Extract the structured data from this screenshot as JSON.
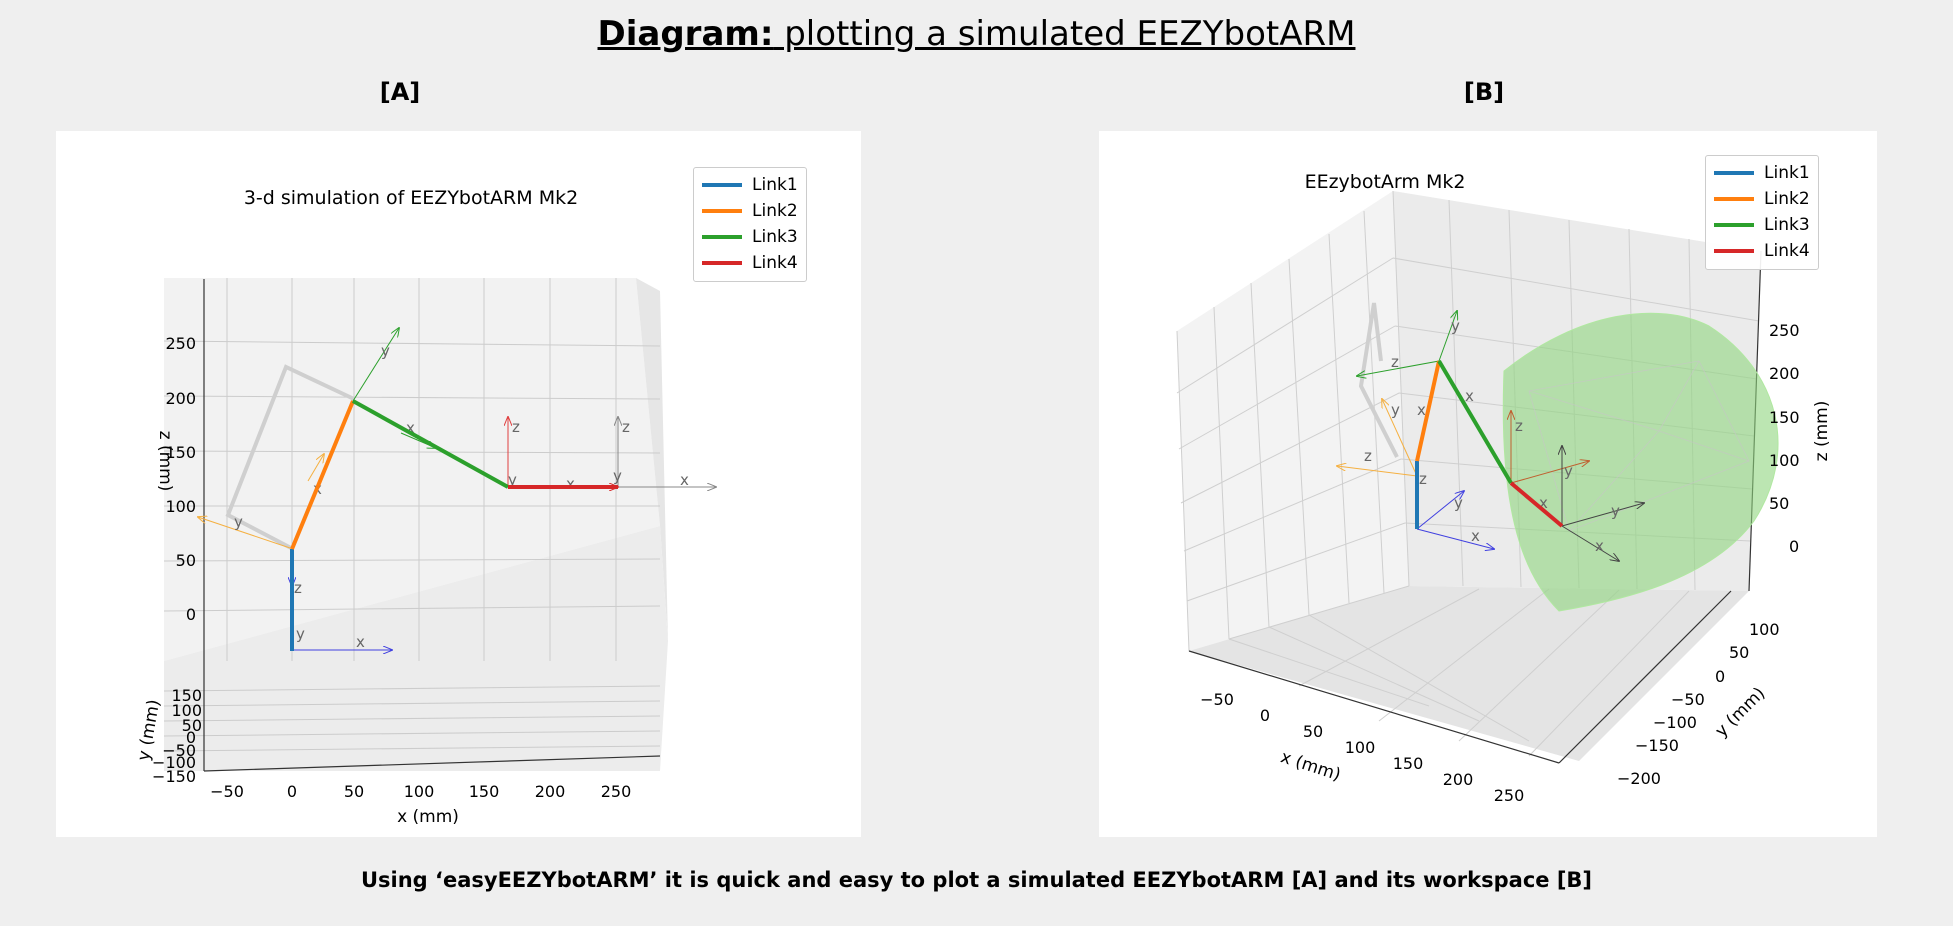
{
  "header": {
    "title_bold": "Diagram:",
    "title_rest": " plotting a simulated EEZYbotARM"
  },
  "panel_a": {
    "label": "[A]",
    "plot_title": "3-d simulation of EEZYbotARM Mk2",
    "x_axis_label": "x (mm)",
    "y_axis_label": "y (mm)",
    "z_axis_label": "z (mm)",
    "x_ticks": [
      "−50",
      "0",
      "50",
      "100",
      "150",
      "200",
      "250"
    ],
    "y_ticks": [
      "150",
      "100",
      "50",
      "0",
      "−50",
      "−100",
      "−150"
    ],
    "z_ticks": [
      "250",
      "200",
      "150",
      "100",
      "50",
      "0"
    ],
    "legend": [
      "Link1",
      "Link2",
      "Link3",
      "Link4"
    ]
  },
  "panel_b": {
    "label": "[B]",
    "plot_title": "EEzybotArm Mk2",
    "x_axis_label": "x (mm)",
    "y_axis_label": "y (mm)",
    "z_axis_label": "z (mm)",
    "x_ticks": [
      "−50",
      "0",
      "50",
      "100",
      "150",
      "200",
      "250"
    ],
    "y_ticks": [
      "100",
      "50",
      "0",
      "−50",
      "−100",
      "−150",
      "−200"
    ],
    "z_ticks": [
      "250",
      "200",
      "150",
      "100",
      "50",
      "0"
    ],
    "legend": [
      "Link1",
      "Link2",
      "Link3",
      "Link4"
    ]
  },
  "frame_labels": [
    "x",
    "y",
    "z"
  ],
  "colors": {
    "link1": "#1f77b4",
    "link2": "#ff7f0e",
    "link3": "#2ca02c",
    "link4": "#d62728",
    "workspace": "#90d67f",
    "ghost_arm": "#cfcfcf"
  },
  "caption": "Using ‘easyEEZYbotARM’ it is quick and easy to plot a simulated EEZYbotARM [A] and its workspace [B]"
}
